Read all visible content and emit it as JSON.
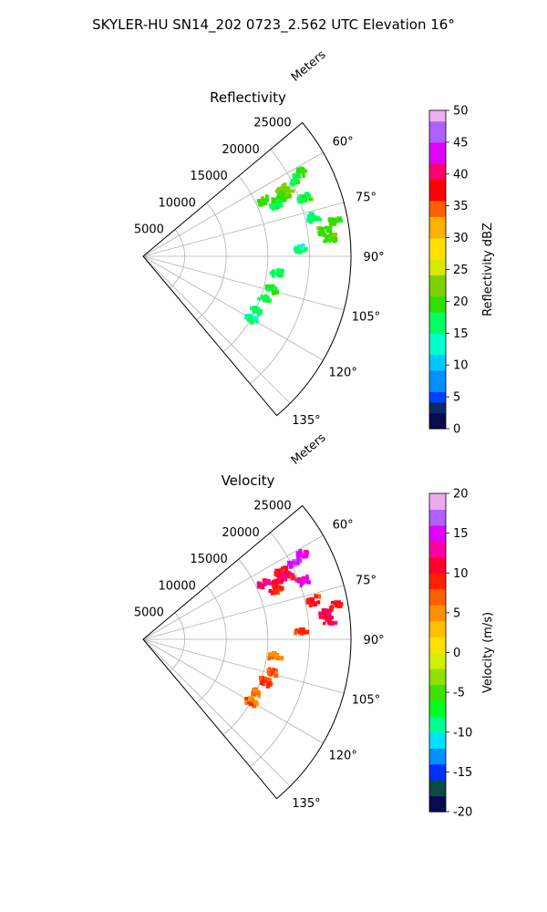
{
  "figure": {
    "title": "SKYLER-HU  SN14_202  0723_2.562 UTC Elevation 16°"
  },
  "chart_data": [
    {
      "type": "heatmap",
      "title": "Reflectivity",
      "projection": "polar-sector",
      "radial_label": "Meters",
      "radial_ticks": [
        5000,
        10000,
        15000,
        20000,
        25000
      ],
      "radial_tick_labels": [
        "5000",
        "10000",
        "15000",
        "20000",
        "25000"
      ],
      "radial_range": [
        0,
        25000
      ],
      "angle_range_deg": [
        50,
        140
      ],
      "angle_ticks_deg": [
        60,
        75,
        90,
        105,
        120,
        135
      ],
      "angle_tick_labels": [
        "60°",
        "75°",
        "90°",
        "105°",
        "120°",
        "135°"
      ],
      "grid": true,
      "colorbar": {
        "label": "Reflectivity dBZ",
        "range": [
          0,
          50
        ],
        "ticks": [
          0,
          5,
          10,
          15,
          20,
          25,
          30,
          35,
          40,
          45,
          50
        ],
        "tick_labels": [
          "0",
          "5",
          "10",
          "15",
          "20",
          "25",
          "30",
          "35",
          "40",
          "45",
          "50"
        ],
        "colormap": "pyart_NWSRef"
      },
      "cells": [
        {
          "az": 62,
          "r": 21500,
          "v": 19
        },
        {
          "az": 63,
          "r": 20500,
          "v": 18
        },
        {
          "az": 64,
          "r": 18500,
          "v": 22
        },
        {
          "az": 65,
          "r": 16000,
          "v": 20
        },
        {
          "az": 66,
          "r": 18800,
          "v": 21
        },
        {
          "az": 67,
          "r": 17500,
          "v": 19
        },
        {
          "az": 69,
          "r": 17000,
          "v": 18
        },
        {
          "az": 70,
          "r": 20500,
          "v": 17
        },
        {
          "az": 77,
          "r": 21000,
          "v": 16
        },
        {
          "az": 80,
          "r": 23500,
          "v": 19
        },
        {
          "az": 82,
          "r": 22000,
          "v": 21
        },
        {
          "az": 84,
          "r": 22500,
          "v": 20
        },
        {
          "az": 87,
          "r": 19000,
          "v": 15
        },
        {
          "az": 97,
          "r": 16000,
          "v": 17
        },
        {
          "az": 104,
          "r": 16000,
          "v": 19
        },
        {
          "az": 109,
          "r": 15500,
          "v": 18
        },
        {
          "az": 115,
          "r": 15000,
          "v": 16
        },
        {
          "az": 120,
          "r": 15000,
          "v": 15
        }
      ]
    },
    {
      "type": "heatmap",
      "title": "Velocity",
      "projection": "polar-sector",
      "radial_label": "Meters",
      "radial_ticks": [
        5000,
        10000,
        15000,
        20000,
        25000
      ],
      "radial_tick_labels": [
        "5000",
        "10000",
        "15000",
        "20000",
        "25000"
      ],
      "radial_range": [
        0,
        25000
      ],
      "angle_range_deg": [
        50,
        140
      ],
      "angle_ticks_deg": [
        60,
        75,
        90,
        105,
        120,
        135
      ],
      "angle_tick_labels": [
        "60°",
        "75°",
        "90°",
        "105°",
        "120°",
        "135°"
      ],
      "grid": true,
      "colorbar": {
        "label": "Velocity (m/s)",
        "range": [
          -20,
          20
        ],
        "ticks": [
          -20,
          -15,
          -10,
          -5,
          0,
          5,
          10,
          15,
          20
        ],
        "tick_labels": [
          "-20",
          "-15",
          "-10",
          "-5",
          "0",
          "5",
          "10",
          "15",
          "20"
        ],
        "colormap": "pyart_BuDRd18"
      },
      "cells": [
        {
          "az": 62,
          "r": 21500,
          "v": 14
        },
        {
          "az": 63,
          "r": 20500,
          "v": 15
        },
        {
          "az": 64,
          "r": 18500,
          "v": 10
        },
        {
          "az": 65,
          "r": 16000,
          "v": 13
        },
        {
          "az": 66,
          "r": 18800,
          "v": 11
        },
        {
          "az": 67,
          "r": 17500,
          "v": 12
        },
        {
          "az": 69,
          "r": 17000,
          "v": 9
        },
        {
          "az": 70,
          "r": 20500,
          "v": 15
        },
        {
          "az": 77,
          "r": 21000,
          "v": 9
        },
        {
          "az": 80,
          "r": 23500,
          "v": 10
        },
        {
          "az": 82,
          "r": 22000,
          "v": 12
        },
        {
          "az": 84,
          "r": 22500,
          "v": 11
        },
        {
          "az": 87,
          "r": 19000,
          "v": 8
        },
        {
          "az": 97,
          "r": 16000,
          "v": 6
        },
        {
          "az": 104,
          "r": 16000,
          "v": 7
        },
        {
          "az": 109,
          "r": 15500,
          "v": 8
        },
        {
          "az": 115,
          "r": 15000,
          "v": 6
        },
        {
          "az": 120,
          "r": 15000,
          "v": 7
        }
      ]
    }
  ]
}
